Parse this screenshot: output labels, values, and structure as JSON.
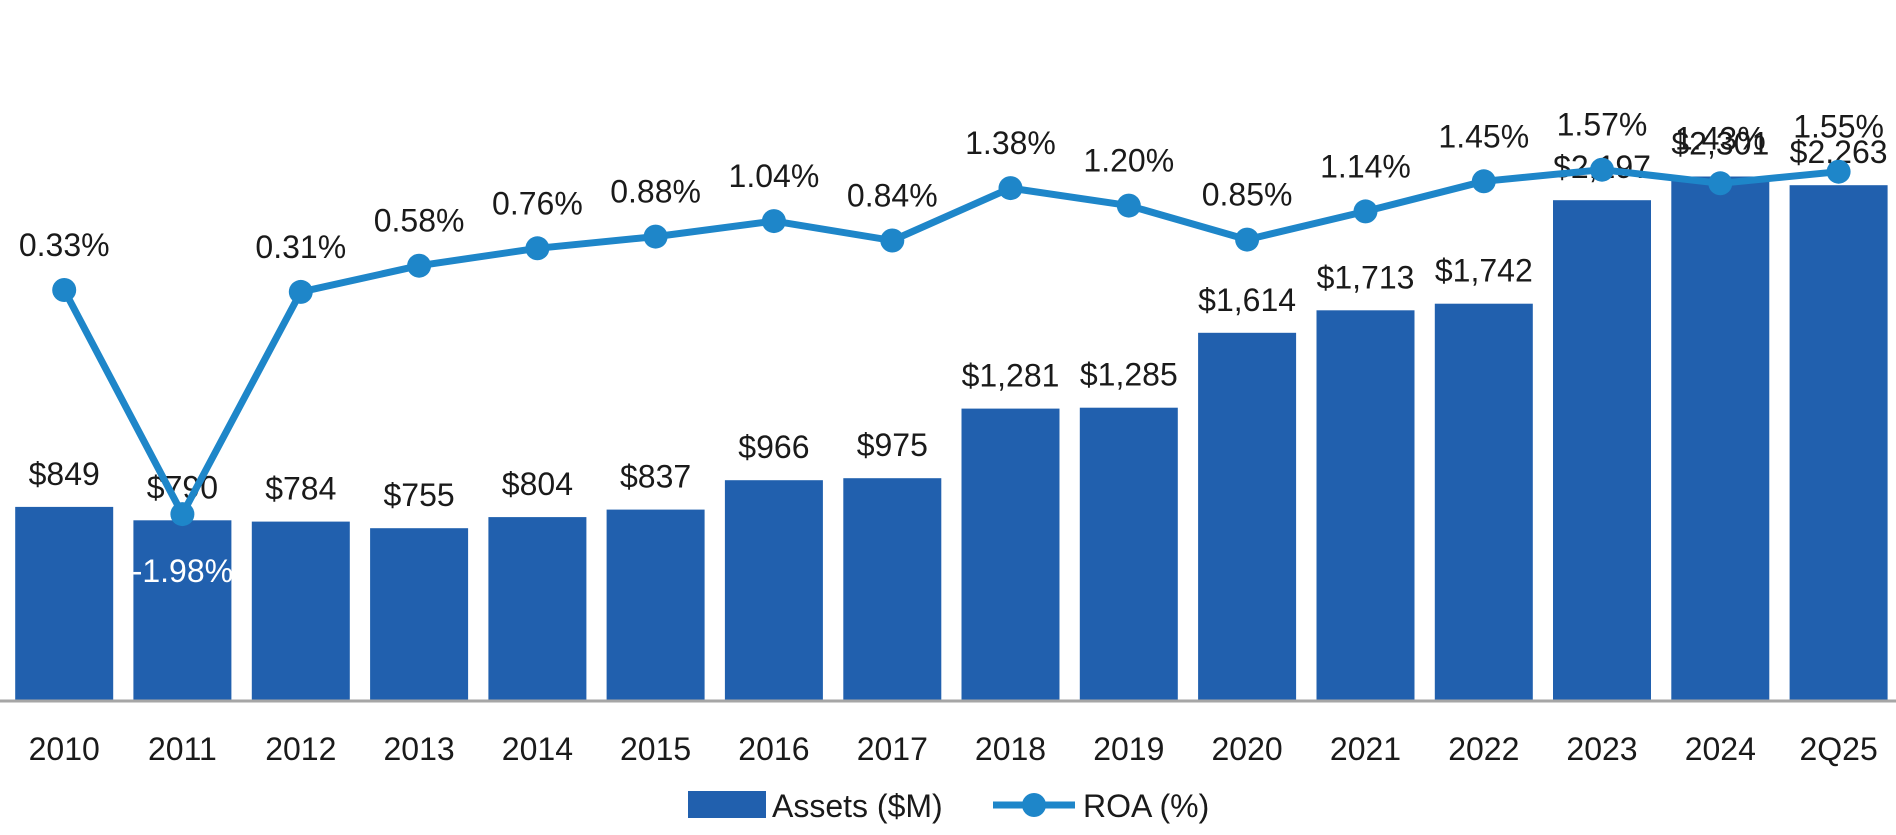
{
  "chart_data": {
    "type": "bar",
    "categories": [
      "2010",
      "2011",
      "2012",
      "2013",
      "2014",
      "2015",
      "2016",
      "2017",
      "2018",
      "2019",
      "2020",
      "2021",
      "2022",
      "2023",
      "2024",
      "2Q25"
    ],
    "series": [
      {
        "name": "Assets ($M)",
        "type": "bar",
        "color": "#2160AE",
        "values": [
          849,
          790,
          784,
          755,
          804,
          837,
          966,
          975,
          1281,
          1285,
          1614,
          1713,
          1742,
          2197,
          2301,
          2263
        ],
        "labels": [
          "$849",
          "$790",
          "$784",
          "$755",
          "$804",
          "$837",
          "$966",
          "$975",
          "$1,281",
          "$1,285",
          "$1,614",
          "$1,713",
          "$1,742",
          "$2,197",
          "$2,301",
          "$2,263"
        ]
      },
      {
        "name": "ROA (%)",
        "type": "line",
        "color": "#1E86C9",
        "values": [
          0.33,
          -1.98,
          0.31,
          0.58,
          0.76,
          0.88,
          1.04,
          0.84,
          1.38,
          1.2,
          0.85,
          1.14,
          1.45,
          1.57,
          1.43,
          1.55
        ],
        "labels": [
          "0.33%",
          "-1.98%",
          "0.31%",
          "0.58%",
          "0.76%",
          "0.88%",
          "1.04%",
          "0.84%",
          "1.38%",
          "1.20%",
          "0.85%",
          "1.14%",
          "1.45%",
          "1.57%",
          "1.43%",
          "1.55%"
        ]
      }
    ],
    "title": "",
    "xlabel": "",
    "ylabel": "",
    "grid": false,
    "legend": "bottom-center",
    "ylim_assets": [
      0,
      2750
    ],
    "ylim_roa": [
      -2.5,
      1.75
    ]
  }
}
